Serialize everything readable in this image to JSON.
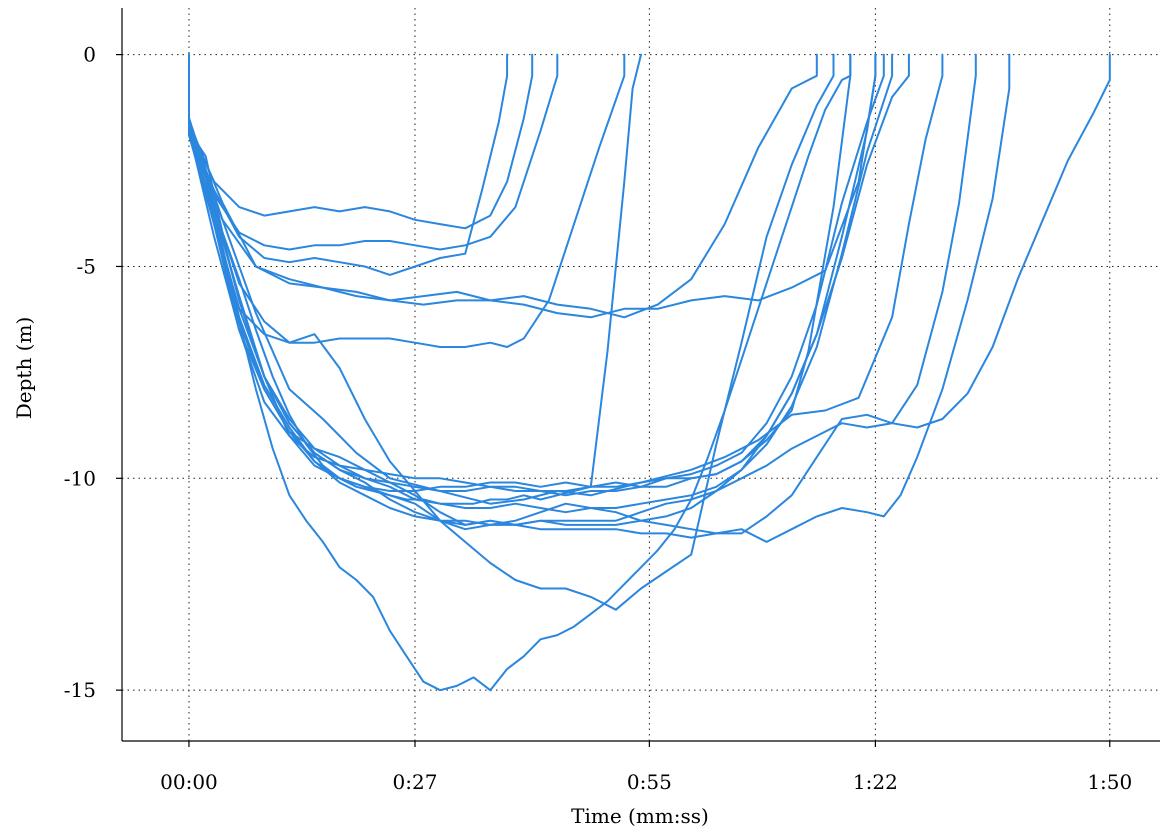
{
  "chart_data": {
    "type": "line",
    "title": "",
    "xlabel": "Time (mm:ss)",
    "ylabel": "Depth (m)",
    "x_unit": "seconds",
    "xlim": [
      -8,
      116
    ],
    "ylim": [
      -16.2,
      1.1
    ],
    "xticks": [
      {
        "value": 0,
        "label": "00:00"
      },
      {
        "value": 27,
        "label": "0:27"
      },
      {
        "value": 55,
        "label": "0:55"
      },
      {
        "value": 82,
        "label": "1:22"
      },
      {
        "value": 110,
        "label": "1:50"
      }
    ],
    "yticks": [
      {
        "value": 0,
        "label": "0"
      },
      {
        "value": -5,
        "label": "-5"
      },
      {
        "value": -10,
        "label": "-10"
      },
      {
        "value": -15,
        "label": "-15"
      }
    ],
    "grid": true,
    "line_color": "#2b86de",
    "series": [
      {
        "x": [
          0,
          0,
          2,
          4,
          6,
          8,
          10,
          12,
          14,
          16,
          18,
          20,
          22,
          24,
          26,
          28,
          30,
          32,
          34,
          36,
          38,
          40,
          42,
          44,
          46,
          48,
          50,
          52,
          53,
          54
        ],
        "y": [
          0,
          -1.8,
          -2.4,
          -4.2,
          -5.3,
          -6.5,
          -7.6,
          -8.5,
          -9.2,
          -9.7,
          -10.0,
          -10.2,
          -10.3,
          -10.4,
          -10.5,
          -10.5,
          -10.6,
          -10.6,
          -10.6,
          -10.5,
          -10.5,
          -10.4,
          -10.5,
          -10.4,
          -10.3,
          -10.2,
          -7.0,
          -3.0,
          -0.8,
          0
        ]
      },
      {
        "x": [
          0,
          0,
          3,
          6,
          9,
          12,
          15,
          18,
          21,
          24,
          27,
          30,
          33,
          35,
          37,
          38,
          38
        ],
        "y": [
          0,
          -1.9,
          -3.2,
          -4.3,
          -4.8,
          -4.9,
          -4.8,
          -4.9,
          -5.0,
          -5.2,
          -5.0,
          -4.8,
          -4.7,
          -3.2,
          -1.6,
          -0.5,
          0
        ]
      },
      {
        "x": [
          0,
          0,
          3,
          6,
          9,
          12,
          15,
          18,
          21,
          24,
          27,
          30,
          33,
          36,
          38,
          40,
          41,
          41
        ],
        "y": [
          0,
          -1.7,
          -3.0,
          -3.6,
          -3.8,
          -3.7,
          -3.6,
          -3.7,
          -3.6,
          -3.7,
          -3.9,
          -4.0,
          -4.1,
          -3.8,
          -3.0,
          -1.5,
          -0.5,
          0
        ]
      },
      {
        "x": [
          0,
          0,
          3,
          6,
          9,
          12,
          15,
          18,
          21,
          24,
          27,
          30,
          33,
          36,
          39,
          42,
          44,
          44
        ],
        "y": [
          0,
          -1.5,
          -3.3,
          -4.2,
          -4.5,
          -4.6,
          -4.5,
          -4.5,
          -4.4,
          -4.4,
          -4.5,
          -4.6,
          -4.5,
          -4.3,
          -3.6,
          -1.8,
          -0.5,
          0
        ]
      },
      {
        "x": [
          0,
          0,
          3,
          6,
          9,
          12,
          15,
          18,
          21,
          24,
          27,
          30,
          33,
          36,
          38,
          40,
          43,
          46,
          49,
          52,
          52
        ],
        "y": [
          0,
          -1.6,
          -3.6,
          -5.4,
          -6.3,
          -6.8,
          -6.8,
          -6.7,
          -6.7,
          -6.7,
          -6.8,
          -6.9,
          -6.9,
          -6.8,
          -6.9,
          -6.7,
          -5.8,
          -4.0,
          -2.2,
          -0.5,
          0
        ]
      },
      {
        "x": [
          0,
          0,
          4,
          8,
          12,
          16,
          20,
          24,
          28,
          32,
          36,
          40,
          44,
          48,
          52,
          56,
          60,
          64,
          68,
          72,
          74,
          75,
          75
        ],
        "y": [
          0,
          -1.7,
          -3.9,
          -5.0,
          -5.4,
          -5.5,
          -5.6,
          -5.8,
          -5.9,
          -5.8,
          -5.8,
          -5.7,
          -5.9,
          -6.0,
          -6.2,
          -5.9,
          -5.3,
          -4.0,
          -2.2,
          -0.8,
          -0.6,
          -0.5,
          0
        ]
      },
      {
        "x": [
          0,
          0,
          4,
          8,
          12,
          16,
          20,
          24,
          28,
          32,
          36,
          40,
          44,
          48,
          52,
          56,
          60,
          64,
          68,
          72,
          76,
          80,
          82,
          82
        ],
        "y": [
          0,
          -1.6,
          -3.5,
          -5.0,
          -5.3,
          -5.5,
          -5.7,
          -5.8,
          -5.7,
          -5.6,
          -5.8,
          -5.9,
          -6.1,
          -6.2,
          -6.0,
          -6.0,
          -5.8,
          -5.7,
          -5.8,
          -5.5,
          -5.1,
          -3.0,
          -0.5,
          0
        ]
      },
      {
        "x": [
          0,
          0,
          3,
          6,
          9,
          12,
          15,
          18,
          21,
          24,
          27,
          30,
          33,
          36,
          39,
          42,
          45,
          48,
          51,
          54,
          57,
          60,
          63,
          66,
          69,
          72,
          74,
          77,
          79,
          79
        ],
        "y": [
          0,
          -1.9,
          -3.7,
          -6.2,
          -7.8,
          -8.8,
          -9.6,
          -10.0,
          -10.2,
          -10.3,
          -10.3,
          -10.2,
          -10.2,
          -10.1,
          -10.1,
          -10.2,
          -10.1,
          -10.2,
          -10.1,
          -10.2,
          -10.0,
          -10.0,
          -9.9,
          -9.6,
          -9.1,
          -8.4,
          -7.0,
          -3.6,
          -0.5,
          0
        ]
      },
      {
        "x": [
          0,
          0,
          3,
          6,
          9,
          12,
          15,
          18,
          21,
          24,
          27,
          30,
          33,
          36,
          39,
          42,
          45,
          48,
          51,
          54,
          57,
          60,
          63,
          66,
          69,
          72,
          75,
          78,
          81,
          82,
          82
        ],
        "y": [
          0,
          -1.5,
          -3.5,
          -5.8,
          -7.6,
          -8.7,
          -9.4,
          -9.8,
          -10.0,
          -10.1,
          -10.2,
          -10.3,
          -10.3,
          -10.2,
          -10.3,
          -10.3,
          -10.4,
          -10.3,
          -10.3,
          -10.2,
          -10.2,
          -10.0,
          -9.9,
          -9.6,
          -9.0,
          -8.0,
          -6.6,
          -4.3,
          -1.8,
          -0.5,
          0
        ]
      },
      {
        "x": [
          0,
          0,
          3,
          6,
          9,
          12,
          15,
          18,
          21,
          24,
          27,
          30,
          33,
          36,
          39,
          42,
          45,
          48,
          51,
          54,
          57,
          60,
          63,
          66,
          69,
          72,
          75,
          78,
          81,
          83,
          83
        ],
        "y": [
          0,
          -1.7,
          -4.0,
          -6.5,
          -8.2,
          -9.0,
          -9.5,
          -9.7,
          -9.8,
          -9.9,
          -10.0,
          -10.0,
          -10.1,
          -10.2,
          -10.2,
          -10.3,
          -10.3,
          -10.2,
          -10.2,
          -10.1,
          -10.0,
          -9.9,
          -9.7,
          -9.4,
          -8.7,
          -7.6,
          -5.9,
          -3.5,
          -1.6,
          -0.5,
          0
        ]
      },
      {
        "x": [
          0,
          0,
          3,
          6,
          9,
          12,
          15,
          18,
          21,
          24,
          27,
          30,
          33,
          36,
          39,
          42,
          45,
          48,
          51,
          54,
          57,
          60,
          63,
          66,
          69,
          72,
          75,
          78,
          81,
          84,
          84
        ],
        "y": [
          0,
          -1.9,
          -4.0,
          -6.0,
          -7.6,
          -8.6,
          -9.3,
          -9.7,
          -10.0,
          -10.2,
          -10.5,
          -10.6,
          -10.7,
          -10.7,
          -10.6,
          -10.7,
          -10.8,
          -10.7,
          -10.7,
          -10.6,
          -10.5,
          -10.4,
          -10.2,
          -9.8,
          -9.2,
          -8.3,
          -6.9,
          -4.7,
          -2.3,
          -0.5,
          0
        ]
      },
      {
        "x": [
          0,
          0,
          3,
          6,
          9,
          12,
          15,
          18,
          21,
          24,
          27,
          30,
          33,
          36,
          39,
          42,
          45,
          48,
          51,
          54,
          57,
          60,
          63,
          66,
          69,
          72,
          75,
          78,
          81,
          84,
          86,
          86
        ],
        "y": [
          0,
          -1.8,
          -4.3,
          -6.5,
          -7.9,
          -8.9,
          -9.6,
          -10.1,
          -10.4,
          -10.7,
          -10.9,
          -11.0,
          -11.0,
          -11.1,
          -11.1,
          -11.0,
          -11.1,
          -11.1,
          -11.1,
          -11.0,
          -10.9,
          -10.7,
          -10.3,
          -9.8,
          -9.0,
          -8.0,
          -6.6,
          -4.8,
          -2.6,
          -1.0,
          -0.5,
          0
        ]
      },
      {
        "x": [
          0,
          0,
          4,
          8,
          12,
          16,
          20,
          24,
          28,
          32,
          36,
          40,
          44,
          48,
          52,
          56,
          60,
          64,
          68,
          72,
          76,
          80,
          84,
          86,
          88,
          90,
          90
        ],
        "y": [
          0,
          -1.6,
          -3.9,
          -6.1,
          -7.9,
          -8.6,
          -9.4,
          -10.0,
          -10.2,
          -10.4,
          -10.6,
          -10.5,
          -10.3,
          -10.4,
          -10.2,
          -10.0,
          -9.8,
          -9.5,
          -9.1,
          -8.5,
          -8.4,
          -8.1,
          -6.2,
          -4.0,
          -2.0,
          -0.5,
          0
        ]
      },
      {
        "x": [
          0,
          0,
          3,
          6,
          9,
          12,
          15,
          18,
          21,
          24,
          27,
          30,
          33,
          36,
          39,
          42,
          45,
          48,
          51,
          54,
          57,
          60,
          63,
          66,
          69,
          72,
          75,
          78,
          81,
          84,
          87,
          90,
          92,
          94,
          94
        ],
        "y": [
          0,
          -1.5,
          -3.6,
          -5.8,
          -7.6,
          -8.7,
          -9.4,
          -9.8,
          -10.1,
          -10.5,
          -10.8,
          -11.0,
          -11.1,
          -11.0,
          -11.1,
          -11.0,
          -11.0,
          -11.0,
          -11.0,
          -10.8,
          -10.6,
          -10.5,
          -10.3,
          -10.0,
          -9.7,
          -9.3,
          -9.0,
          -8.7,
          -8.8,
          -8.7,
          -7.8,
          -5.6,
          -3.5,
          -0.5,
          0
        ]
      },
      {
        "x": [
          0,
          0,
          3,
          6,
          9,
          12,
          15,
          18,
          21,
          24,
          27,
          30,
          33,
          36,
          39,
          42,
          45,
          48,
          51,
          54,
          57,
          60,
          63,
          66,
          69,
          72,
          75,
          78,
          81,
          83,
          85,
          87,
          90,
          93,
          96,
          98,
          98
        ],
        "y": [
          0,
          -1.9,
          -3.7,
          -5.7,
          -7.6,
          -9.0,
          -9.7,
          -10.0,
          -10.2,
          -10.4,
          -10.6,
          -11.0,
          -11.2,
          -11.1,
          -11.0,
          -10.8,
          -10.6,
          -10.7,
          -10.8,
          -11.0,
          -11.1,
          -11.2,
          -11.3,
          -11.2,
          -11.5,
          -11.2,
          -10.9,
          -10.7,
          -10.8,
          -10.9,
          -10.4,
          -9.5,
          -7.9,
          -5.8,
          -3.4,
          -0.8,
          0
        ]
      },
      {
        "x": [
          0,
          0,
          3,
          6,
          9,
          12,
          15,
          18,
          21,
          24,
          27,
          30,
          33,
          36,
          39,
          42,
          45,
          48,
          51,
          54,
          57,
          60,
          63,
          66,
          69,
          72,
          75,
          78,
          81,
          84,
          87,
          90,
          93,
          96,
          99,
          102,
          105,
          108,
          110,
          110
        ],
        "y": [
          0,
          -1.7,
          -4.0,
          -6.3,
          -7.9,
          -8.9,
          -9.3,
          -9.5,
          -9.8,
          -10.1,
          -10.4,
          -10.8,
          -11.1,
          -11.0,
          -11.1,
          -11.2,
          -11.2,
          -11.2,
          -11.2,
          -11.3,
          -11.3,
          -11.4,
          -11.3,
          -11.3,
          -10.9,
          -10.4,
          -9.5,
          -8.6,
          -8.5,
          -8.7,
          -8.8,
          -8.6,
          -8.0,
          -6.9,
          -5.3,
          -3.9,
          -2.5,
          -1.4,
          -0.6,
          0
        ]
      },
      {
        "x": [
          0,
          0,
          3,
          6,
          9,
          12,
          15,
          18,
          21,
          24,
          27,
          30,
          33,
          36,
          39,
          42,
          45,
          48,
          51,
          54,
          57,
          60,
          63,
          66,
          69,
          72,
          75,
          77,
          77
        ],
        "y": [
          0,
          -1.6,
          -3.9,
          -6.0,
          -6.6,
          -6.8,
          -6.6,
          -7.4,
          -8.6,
          -9.6,
          -10.3,
          -11.0,
          -11.5,
          -12.0,
          -12.4,
          -12.6,
          -12.6,
          -12.8,
          -13.1,
          -12.6,
          -12.2,
          -11.8,
          -9.2,
          -6.8,
          -4.3,
          -2.6,
          -1.2,
          -0.5,
          0
        ]
      },
      {
        "x": [
          0,
          0,
          2,
          4,
          6,
          8,
          10,
          12,
          14,
          16,
          18,
          20,
          22,
          24,
          26,
          28,
          30,
          32,
          34,
          36,
          38,
          40,
          42,
          44,
          46,
          48,
          50,
          52,
          54,
          56,
          58,
          60,
          62,
          64,
          66,
          68,
          70,
          72,
          74,
          76,
          78,
          79,
          79
        ],
        "y": [
          0,
          -1.8,
          -2.9,
          -4.6,
          -6.3,
          -7.9,
          -9.3,
          -10.4,
          -11.0,
          -11.5,
          -12.1,
          -12.4,
          -12.8,
          -13.6,
          -14.2,
          -14.8,
          -15.0,
          -14.9,
          -14.7,
          -15.0,
          -14.5,
          -14.2,
          -13.8,
          -13.7,
          -13.5,
          -13.2,
          -12.9,
          -12.5,
          -12.1,
          -11.7,
          -11.2,
          -10.5,
          -9.5,
          -8.4,
          -7.2,
          -6.0,
          -4.8,
          -3.6,
          -2.4,
          -1.3,
          -0.6,
          -0.5,
          0
        ]
      }
    ]
  }
}
